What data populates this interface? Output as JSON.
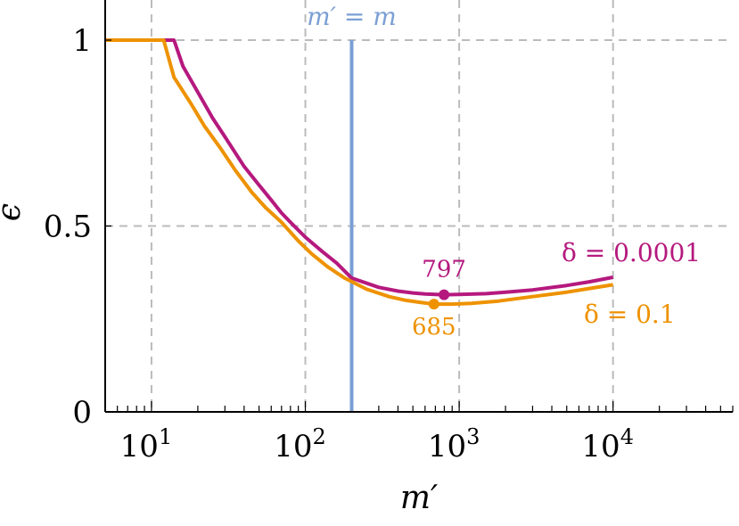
{
  "chart_data": {
    "type": "line",
    "xlabel": "m′",
    "ylabel": "ϵ",
    "xscale": "log",
    "xlim": [
      5,
      60000
    ],
    "ylim": [
      0,
      1.05
    ],
    "xticks": [
      {
        "value": 10,
        "base": "10",
        "exp": "1"
      },
      {
        "value": 100,
        "base": "10",
        "exp": "2"
      },
      {
        "value": 1000,
        "base": "10",
        "exp": "3"
      },
      {
        "value": 10000,
        "base": "10",
        "exp": "4"
      }
    ],
    "yticks": [
      {
        "value": 0,
        "label": "0"
      },
      {
        "value": 0.5,
        "label": "0.5"
      },
      {
        "value": 1,
        "label": "1"
      }
    ],
    "grid": true,
    "vline": {
      "x": 200,
      "label": "m′ = m",
      "color": "#7b9fd4"
    },
    "series": [
      {
        "name": "δ = 0.0001",
        "color": "#b5197e",
        "min_point": {
          "x": 797,
          "y": 0.315,
          "label": "797"
        },
        "points": [
          [
            5,
            1
          ],
          [
            14,
            1
          ],
          [
            16,
            0.93
          ],
          [
            20,
            0.86
          ],
          [
            25,
            0.79
          ],
          [
            30,
            0.74
          ],
          [
            40,
            0.66
          ],
          [
            50,
            0.61
          ],
          [
            60,
            0.57
          ],
          [
            70,
            0.535
          ],
          [
            80,
            0.51
          ],
          [
            100,
            0.47
          ],
          [
            130,
            0.43
          ],
          [
            160,
            0.4
          ],
          [
            200,
            0.36
          ],
          [
            300,
            0.335
          ],
          [
            400,
            0.325
          ],
          [
            500,
            0.32
          ],
          [
            600,
            0.317
          ],
          [
            797,
            0.315
          ],
          [
            1000,
            0.316
          ],
          [
            1500,
            0.318
          ],
          [
            2000,
            0.322
          ],
          [
            3000,
            0.328
          ],
          [
            5000,
            0.34
          ],
          [
            7000,
            0.35
          ],
          [
            10000,
            0.362
          ]
        ]
      },
      {
        "name": "δ = 0.1",
        "color": "#ee9200",
        "min_point": {
          "x": 685,
          "y": 0.29,
          "label": "685"
        },
        "points": [
          [
            5,
            1
          ],
          [
            12,
            1
          ],
          [
            14,
            0.9
          ],
          [
            18,
            0.83
          ],
          [
            22,
            0.77
          ],
          [
            28,
            0.71
          ],
          [
            35,
            0.65
          ],
          [
            45,
            0.59
          ],
          [
            55,
            0.55
          ],
          [
            70,
            0.51
          ],
          [
            90,
            0.46
          ],
          [
            110,
            0.425
          ],
          [
            140,
            0.39
          ],
          [
            180,
            0.36
          ],
          [
            250,
            0.33
          ],
          [
            350,
            0.31
          ],
          [
            450,
            0.3
          ],
          [
            550,
            0.295
          ],
          [
            685,
            0.29
          ],
          [
            900,
            0.29
          ],
          [
            1200,
            0.292
          ],
          [
            1800,
            0.298
          ],
          [
            3000,
            0.31
          ],
          [
            5000,
            0.322
          ],
          [
            7000,
            0.332
          ],
          [
            10000,
            0.342
          ]
        ]
      }
    ]
  }
}
